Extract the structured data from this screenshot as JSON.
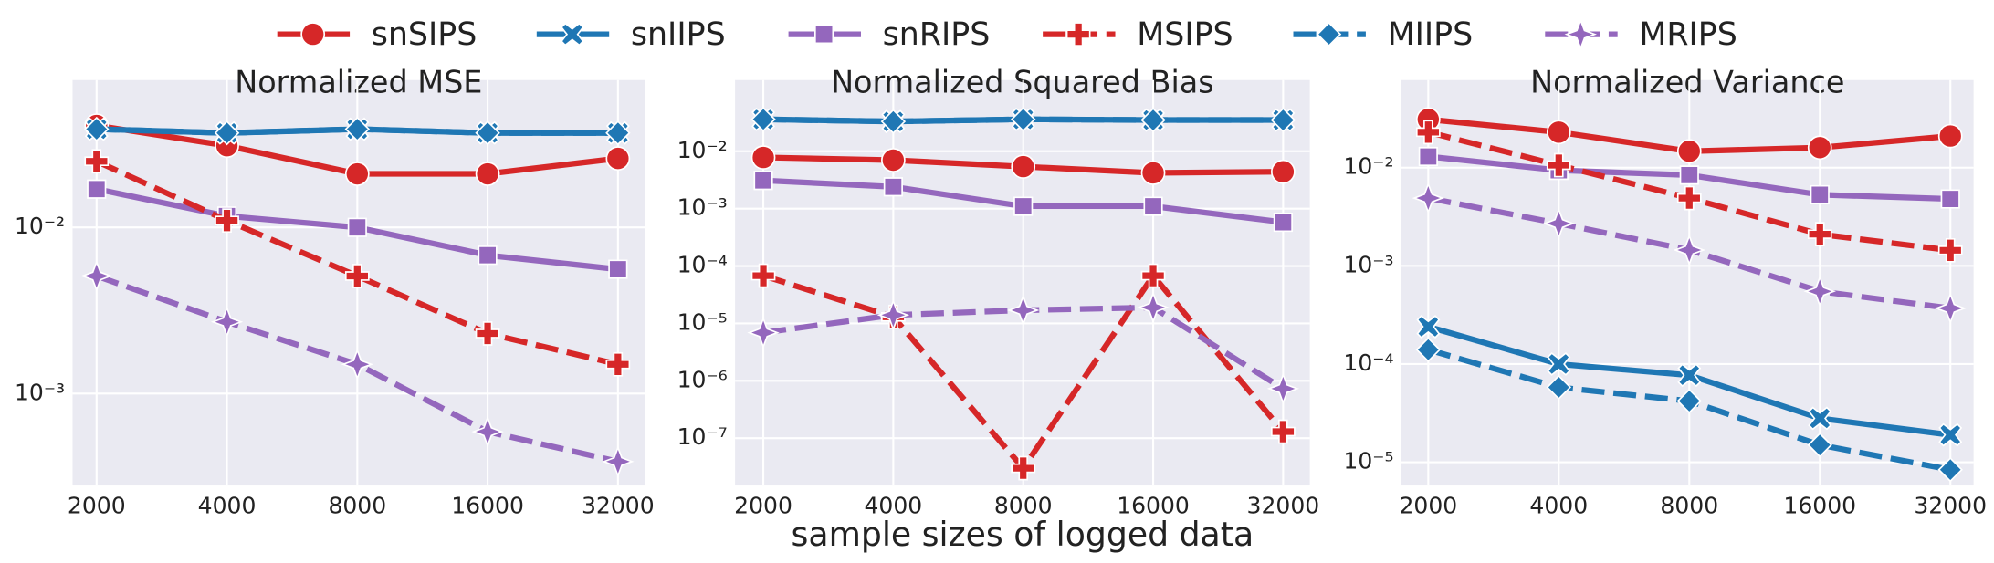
{
  "chart_data": [
    {
      "type": "line",
      "title": "Normalized MSE",
      "yscale": "log",
      "xscale": "log",
      "grid": true,
      "x": [
        2000,
        4000,
        8000,
        16000,
        32000
      ],
      "xlim": [
        1760,
        36900
      ],
      "xticks": [
        2000,
        4000,
        8000,
        16000,
        32000
      ],
      "ylim": [
        0.00028,
        0.077
      ],
      "yticks": [
        {
          "value": 0.01,
          "label": "10⁻²"
        },
        {
          "value": 0.001,
          "label": "10⁻³"
        }
      ],
      "series": [
        {
          "name": "snSIPS",
          "color": "#d62728",
          "marker": "circle",
          "linestyle": "solid",
          "values": [
            0.041,
            0.031,
            0.021,
            0.021,
            0.026
          ]
        },
        {
          "name": "snIIPS",
          "color": "#1f77b4",
          "marker": "x",
          "linestyle": "solid",
          "values": [
            0.039,
            0.037,
            0.039,
            0.037,
            0.037
          ]
        },
        {
          "name": "snRIPS",
          "color": "#9467bd",
          "marker": "square",
          "linestyle": "solid",
          "values": [
            0.017,
            0.0117,
            0.01,
            0.0068,
            0.0056
          ]
        },
        {
          "name": "MSIPS",
          "color": "#d62728",
          "marker": "plus",
          "linestyle": "dashed",
          "values": [
            0.025,
            0.011,
            0.0051,
            0.0023,
            0.0015
          ]
        },
        {
          "name": "MIIPS",
          "color": "#1f77b4",
          "marker": "diamond",
          "linestyle": "dashed",
          "values": [
            0.039,
            0.037,
            0.039,
            0.037,
            0.037
          ]
        },
        {
          "name": "MRIPS",
          "color": "#9467bd",
          "marker": "star",
          "linestyle": "dashed",
          "values": [
            0.0051,
            0.0027,
            0.0015,
            0.00059,
            0.00039
          ]
        }
      ]
    },
    {
      "type": "line",
      "title": "Normalized Squared Bias",
      "xlabel": "sample sizes of logged data",
      "yscale": "log",
      "xscale": "log",
      "grid": true,
      "x": [
        2000,
        4000,
        8000,
        16000,
        32000
      ],
      "xlim": [
        1720,
        36900
      ],
      "xticks": [
        2000,
        4000,
        8000,
        16000,
        32000
      ],
      "ylim": [
        1.5e-08,
        0.174
      ],
      "yticks": [
        {
          "value": 0.01,
          "label": "10⁻²"
        },
        {
          "value": 0.001,
          "label": "10⁻³"
        },
        {
          "value": 0.0001,
          "label": "10⁻⁴"
        },
        {
          "value": 1e-05,
          "label": "10⁻⁵"
        },
        {
          "value": 1e-06,
          "label": "10⁻⁶"
        },
        {
          "value": 1e-07,
          "label": "10⁻⁷"
        }
      ],
      "series": [
        {
          "name": "snSIPS",
          "color": "#d62728",
          "marker": "circle",
          "linestyle": "solid",
          "values": [
            0.0078,
            0.007,
            0.0054,
            0.0042,
            0.0044
          ]
        },
        {
          "name": "snIIPS",
          "color": "#1f77b4",
          "marker": "x",
          "linestyle": "solid",
          "values": [
            0.036,
            0.033,
            0.036,
            0.035,
            0.035
          ]
        },
        {
          "name": "snRIPS",
          "color": "#9467bd",
          "marker": "square",
          "linestyle": "solid",
          "values": [
            0.0031,
            0.0024,
            0.0011,
            0.0011,
            0.00058
          ]
        },
        {
          "name": "MSIPS",
          "color": "#d62728",
          "marker": "plus",
          "linestyle": "dashed",
          "values": [
            6.8e-05,
            1.3e-05,
            3e-08,
            6.8e-05,
            1.3e-07
          ]
        },
        {
          "name": "MIIPS",
          "color": "#1f77b4",
          "marker": "diamond",
          "linestyle": "dashed",
          "values": [
            0.036,
            0.033,
            0.036,
            0.035,
            0.035
          ]
        },
        {
          "name": "MRIPS",
          "color": "#9467bd",
          "marker": "star",
          "linestyle": "dashed",
          "values": [
            6.9e-06,
            1.4e-05,
            1.7e-05,
            1.9e-05,
            7.3e-07
          ]
        }
      ]
    },
    {
      "type": "line",
      "title": "Normalized Variance",
      "yscale": "log",
      "xscale": "log",
      "grid": true,
      "x": [
        2000,
        4000,
        8000,
        16000,
        32000
      ],
      "xlim": [
        1734,
        36200
      ],
      "xticks": [
        2000,
        4000,
        8000,
        16000,
        32000
      ],
      "ylim": [
        5.8e-06,
        0.078
      ],
      "yticks": [
        {
          "value": 0.01,
          "label": "10⁻²"
        },
        {
          "value": 0.001,
          "label": "10⁻³"
        },
        {
          "value": 0.0001,
          "label": "10⁻⁴"
        },
        {
          "value": 1e-05,
          "label": "10⁻⁵"
        }
      ],
      "series": [
        {
          "name": "snSIPS",
          "color": "#d62728",
          "marker": "circle",
          "linestyle": "solid",
          "values": [
            0.031,
            0.023,
            0.0147,
            0.016,
            0.021
          ]
        },
        {
          "name": "snIIPS",
          "color": "#1f77b4",
          "marker": "x",
          "linestyle": "solid",
          "values": [
            0.00024,
            0.0001,
            7.7e-05,
            2.8e-05,
            1.9e-05
          ]
        },
        {
          "name": "snRIPS",
          "color": "#9467bd",
          "marker": "square",
          "linestyle": "solid",
          "values": [
            0.013,
            0.0094,
            0.0084,
            0.0053,
            0.0048
          ]
        },
        {
          "name": "MSIPS",
          "color": "#d62728",
          "marker": "plus",
          "linestyle": "dashed",
          "values": [
            0.023,
            0.0106,
            0.0049,
            0.0021,
            0.00144
          ]
        },
        {
          "name": "MIIPS",
          "color": "#1f77b4",
          "marker": "diamond",
          "linestyle": "dashed",
          "values": [
            0.00014,
            5.8e-05,
            4.2e-05,
            1.5e-05,
            8.4e-06
          ]
        },
        {
          "name": "MRIPS",
          "color": "#9467bd",
          "marker": "star",
          "linestyle": "dashed",
          "values": [
            0.0049,
            0.0027,
            0.00145,
            0.00055,
            0.00037
          ]
        }
      ]
    }
  ]
}
